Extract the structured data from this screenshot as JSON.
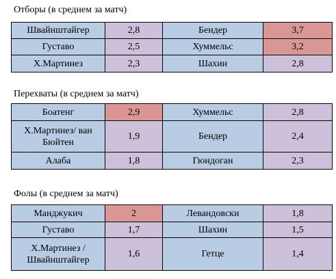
{
  "sections": [
    {
      "title": "Отборы (в среднем за матч)",
      "rows": [
        {
          "left_name": "Швайнштайгер",
          "left_value": "2,8",
          "left_value_hot": false,
          "right_name": "Бендер",
          "right_value": "3,7",
          "right_value_hot": true
        },
        {
          "left_name": "Густаво",
          "left_value": "2,5",
          "left_value_hot": false,
          "right_name": "Хуммельс",
          "right_value": "3,2",
          "right_value_hot": true
        },
        {
          "left_name": "Х.Мартинез",
          "left_value": "2,3",
          "left_value_hot": false,
          "right_name": "Шахин",
          "right_value": "2,8",
          "right_value_hot": false
        }
      ]
    },
    {
      "title": "Перехваты (в среднем за матч)",
      "rows": [
        {
          "left_name": "Боатенг",
          "left_value": "2,9",
          "left_value_hot": true,
          "right_name": "Хуммельс",
          "right_value": "2,8",
          "right_value_hot": false
        },
        {
          "left_name": "Х.Мартинез/ ван Бюйтен",
          "left_value": "1,9",
          "left_value_hot": false,
          "right_name": "Бендер",
          "right_value": "2,4",
          "right_value_hot": false
        },
        {
          "left_name": "Алаба",
          "left_value": "1,8",
          "left_value_hot": false,
          "right_name": "Гюндоган",
          "right_value": "2,3",
          "right_value_hot": false
        }
      ]
    },
    {
      "title": "Фолы (в среднем за матч)",
      "rows": [
        {
          "left_name": "Манджукич",
          "left_value": "2",
          "left_value_hot": true,
          "right_name": "Левандовски",
          "right_value": "1,8",
          "right_value_hot": false
        },
        {
          "left_name": "Густаво",
          "left_value": "1,7",
          "left_value_hot": false,
          "right_name": "Шахин",
          "right_value": "1,5",
          "right_value_hot": false
        },
        {
          "left_name": "Х.Мартинез / Швайнштайгер",
          "left_value": "1,6",
          "left_value_hot": false,
          "right_name": "Гетце",
          "right_value": "1,4",
          "right_value_hot": false
        }
      ]
    }
  ],
  "colors": {
    "name_cell": "#b8cce4",
    "value_cell": "#ccc0da",
    "highlight_cell": "#d99694"
  }
}
